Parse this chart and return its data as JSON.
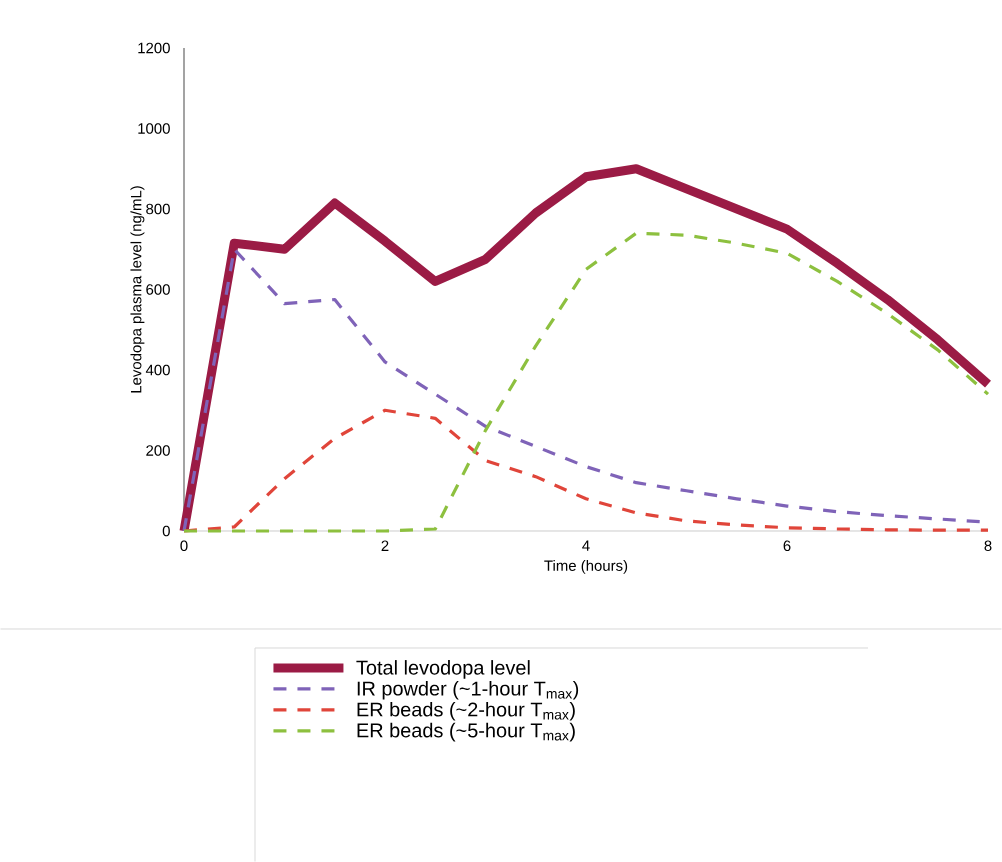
{
  "chart_data": {
    "type": "line",
    "xlabel": "Time (hours)",
    "ylabel": "Levodopa plasma level (ng/mL)",
    "x": [
      0,
      0.5,
      1,
      1.5,
      2,
      2.5,
      3,
      3.5,
      4,
      4.5,
      5,
      5.5,
      6,
      6.5,
      7,
      7.5,
      8
    ],
    "series": [
      {
        "name": "Total levodopa level",
        "color": "#9b1b45",
        "line_style": "solid",
        "values": [
          0,
          715,
          700,
          815,
          720,
          620,
          675,
          790,
          880,
          900,
          850,
          800,
          750,
          665,
          575,
          475,
          365
        ]
      },
      {
        "name": "IR powder (~1-hour T$_{max}$)",
        "color": "#7f63b8",
        "line_style": "dashed",
        "values": [
          0,
          700,
          565,
          575,
          420,
          340,
          260,
          210,
          160,
          120,
          100,
          80,
          62,
          48,
          38,
          30,
          22
        ]
      },
      {
        "name": "ER beads (~2-hour T$_{max}$)",
        "color": "#e0453a",
        "line_style": "dashed",
        "values": [
          0,
          10,
          130,
          230,
          300,
          280,
          175,
          135,
          80,
          45,
          25,
          15,
          8,
          5,
          3,
          2,
          2
        ]
      },
      {
        "name": "ER beads (~5-hour T$_{max}$)",
        "color": "#8dc03f",
        "line_style": "dashed",
        "values": [
          0,
          0,
          0,
          0,
          0,
          5,
          250,
          460,
          650,
          740,
          735,
          715,
          690,
          620,
          540,
          450,
          340
        ]
      }
    ],
    "xlim": [
      0,
      8
    ],
    "xticks": [
      0,
      2,
      4,
      6,
      8
    ],
    "ylim": [
      0,
      1200
    ],
    "yticks": [
      0,
      200,
      400,
      600,
      800,
      1000,
      1200
    ],
    "grid": false,
    "legend": "bottom",
    "marker": "none"
  }
}
